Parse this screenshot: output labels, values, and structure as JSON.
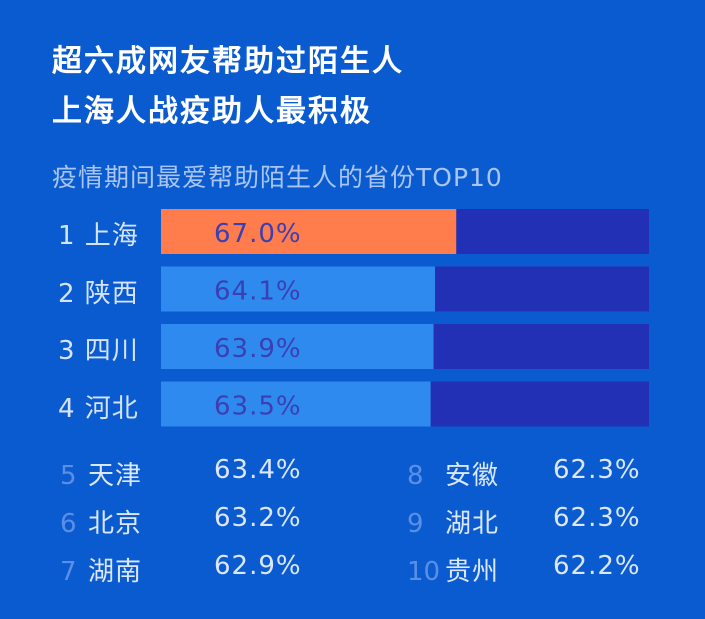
{
  "title_line1": "超六成网友帮助过陌生人",
  "title_line2": "上海人战疫助人最积极",
  "subtitle": "疫情期间最爱帮助陌生人的省份TOP10",
  "colors": {
    "background": "#0b5bd0",
    "bar_track": "#2130b4",
    "bar_top": "#ff7c4c",
    "bar_other": "#2f8af0",
    "value_text": "#3a3fb3"
  },
  "chart_data": {
    "type": "bar",
    "orientation": "horizontal",
    "title": "疫情期间最爱帮助陌生人的省份TOP10",
    "unit": "%",
    "xlim": [
      0,
      100
    ],
    "categories": [
      "上海",
      "陕西",
      "四川",
      "河北",
      "天津",
      "北京",
      "湖南",
      "安徽",
      "湖北",
      "贵州"
    ],
    "ranks": [
      "1",
      "2",
      "3",
      "4",
      "5",
      "6",
      "7",
      "8",
      "9",
      "10"
    ],
    "values": [
      67.0,
      64.1,
      63.9,
      63.5,
      63.4,
      63.2,
      62.9,
      62.3,
      62.3,
      62.2
    ],
    "labels": [
      "67.0%",
      "64.1%",
      "63.9%",
      "63.5%",
      "63.4%",
      "63.2%",
      "62.9%",
      "62.3%",
      "62.3%",
      "62.2%"
    ],
    "bars_shown": 4
  }
}
